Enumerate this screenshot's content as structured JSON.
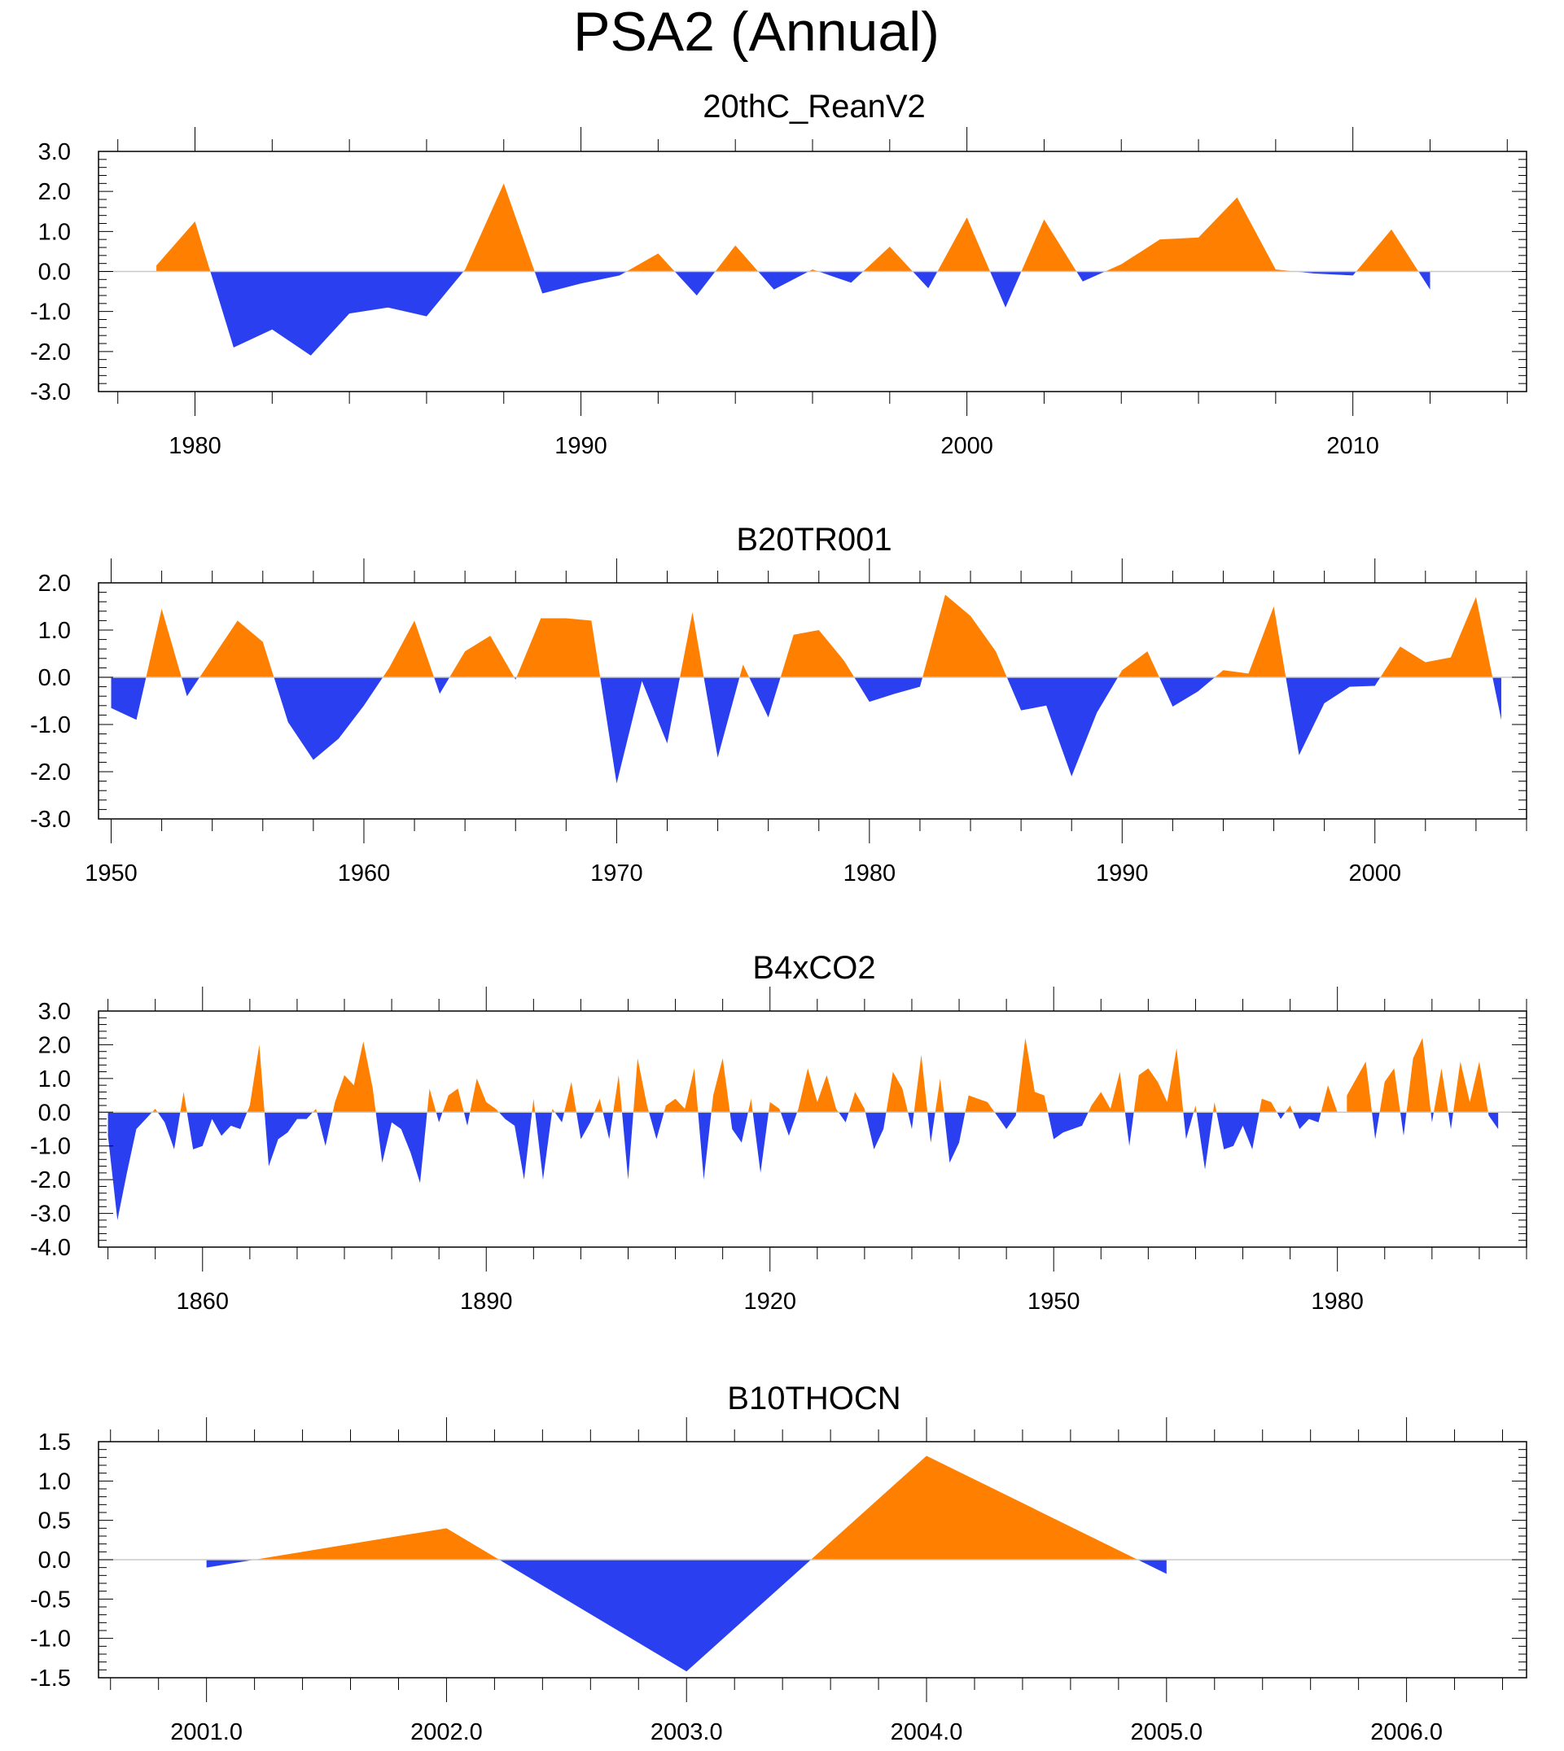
{
  "figure": {
    "title": "PSA2 (Annual)",
    "colors": {
      "positive": "#ff8000",
      "negative": "#2a3ff0",
      "zero_line": "#c8c8c8",
      "axis": "#000000"
    }
  },
  "chart_data": [
    {
      "type": "area",
      "title": "20thC_ReanV2",
      "xlim": [
        1977.5,
        2014.5
      ],
      "ylim": [
        -3.0,
        3.0
      ],
      "yticks": [
        -3.0,
        -2.0,
        -1.0,
        0.0,
        1.0,
        2.0,
        3.0
      ],
      "ytick_labels": [
        "-3.0",
        "-2.0",
        "-1.0",
        "0.0",
        "1.0",
        "2.0",
        "3.0"
      ],
      "yminor": 0.2,
      "xticks": [
        1980,
        1990,
        2000,
        2010
      ],
      "xtick_labels": [
        "1980",
        "1990",
        "2000",
        "2010"
      ],
      "xminor": 2,
      "x_start": 1979,
      "x_step": 1,
      "values": [
        0.15,
        1.25,
        -1.9,
        -1.45,
        -2.1,
        -1.05,
        -0.9,
        -1.12,
        0.05,
        2.2,
        -0.55,
        -0.3,
        -0.1,
        0.45,
        -0.6,
        0.65,
        -0.45,
        0.05,
        -0.28,
        0.62,
        -0.42,
        1.35,
        -0.9,
        1.3,
        -0.25,
        0.18,
        0.8,
        0.85,
        1.85,
        0.05,
        -0.05,
        -0.1,
        1.05,
        -0.45
      ]
    },
    {
      "type": "area",
      "title": "B20TR001",
      "xlim": [
        1949.5,
        2006.0
      ],
      "ylim": [
        -3.0,
        2.0
      ],
      "yticks": [
        -3.0,
        -2.0,
        -1.0,
        0.0,
        1.0,
        2.0
      ],
      "ytick_labels": [
        "-3.0",
        "-2.0",
        "-1.0",
        "0.0",
        "1.0",
        "2.0"
      ],
      "yminor": 0.2,
      "xticks": [
        1950,
        1960,
        1970,
        1980,
        1990,
        2000
      ],
      "xtick_labels": [
        "1950",
        "1960",
        "1970",
        "1980",
        "1990",
        "2000"
      ],
      "xminor": 2,
      "x_start": 1950,
      "x_step": 1,
      "values": [
        -0.65,
        -0.9,
        1.45,
        -0.4,
        0.4,
        1.2,
        0.75,
        -0.95,
        -1.75,
        -1.3,
        -0.6,
        0.2,
        1.2,
        -0.35,
        0.55,
        0.88,
        -0.05,
        1.25,
        1.25,
        1.2,
        -2.25,
        -0.08,
        -1.4,
        1.38,
        -1.7,
        0.27,
        -0.85,
        0.9,
        1.0,
        0.35,
        -0.52,
        -0.35,
        -0.2,
        1.75,
        1.3,
        0.55,
        -0.7,
        -0.6,
        -2.1,
        -0.75,
        0.15,
        0.55,
        -0.62,
        -0.3,
        0.15,
        0.08,
        1.5,
        -1.65,
        -0.55,
        -0.2,
        -0.18,
        0.65,
        0.32,
        0.42,
        1.7,
        -0.9
      ]
    },
    {
      "type": "area",
      "title": "B4xCO2",
      "xlim": [
        1849.0,
        2000.0
      ],
      "ylim": [
        -4.0,
        3.0
      ],
      "yticks": [
        -4.0,
        -3.0,
        -2.0,
        -1.0,
        0.0,
        1.0,
        2.0,
        3.0
      ],
      "ytick_labels": [
        "-4.0",
        "-3.0",
        "-2.0",
        "-1.0",
        "0.0",
        "1.0",
        "2.0",
        "3.0"
      ],
      "yminor": 0.2,
      "xticks": [
        1860,
        1890,
        1920,
        1950,
        1980
      ],
      "xtick_labels": [
        "1860",
        "1890",
        "1920",
        "1950",
        "1980"
      ],
      "xminor": 5,
      "x_start": 1850,
      "x_step": 1,
      "values": [
        -0.7,
        -3.2,
        -1.8,
        -0.5,
        -0.2,
        0.1,
        -0.3,
        -1.1,
        0.6,
        -1.1,
        -1.0,
        -0.2,
        -0.7,
        -0.4,
        -0.5,
        0.2,
        2.0,
        -1.6,
        -0.8,
        -0.6,
        -0.2,
        -0.2,
        0.1,
        -1.0,
        0.3,
        1.1,
        0.8,
        2.1,
        0.7,
        -1.5,
        -0.3,
        -0.5,
        -1.2,
        -2.1,
        0.7,
        -0.3,
        0.5,
        0.7,
        -0.4,
        1.0,
        0.3,
        0.1,
        -0.2,
        -0.4,
        -2.0,
        0.4,
        -2.0,
        0.1,
        -0.3,
        0.9,
        -0.8,
        -0.3,
        0.4,
        -0.8,
        1.1,
        -2.0,
        1.6,
        0.2,
        -0.8,
        0.2,
        0.4,
        0.1,
        1.3,
        -2.0,
        0.5,
        1.6,
        -0.5,
        -0.9,
        0.4,
        -1.8,
        0.3,
        0.1,
        -0.7,
        0.1,
        1.3,
        0.3,
        1.1,
        0.1,
        -0.3,
        0.6,
        0.1,
        -1.1,
        -0.5,
        1.2,
        0.7,
        -0.5,
        1.7,
        -0.9,
        1.0,
        -1.5,
        -0.9,
        0.5,
        0.4,
        0.3,
        -0.1,
        -0.5,
        -0.1,
        2.2,
        0.6,
        0.5,
        -0.8,
        -0.6,
        -0.5,
        -0.4,
        0.2,
        0.6,
        0.1,
        1.2,
        -1.0,
        1.1,
        1.3,
        0.9,
        0.3,
        1.9,
        -0.8,
        0.2,
        -1.7,
        0.3,
        -1.1,
        -1.0,
        -0.4,
        -1.1,
        0.4,
        0.3,
        -0.2,
        0.2,
        -0.5,
        -0.2,
        -0.3,
        0.8,
        0.0,
        0.5,
        1.0,
        1.5,
        -0.8,
        0.9,
        1.3,
        -0.7,
        1.6,
        2.2,
        -0.3,
        1.3,
        -0.5,
        1.5,
        0.3,
        1.5,
        -0.1,
        -0.5
      ]
    },
    {
      "type": "area",
      "title": "B10THOCN",
      "xlim": [
        2000.55,
        2006.5
      ],
      "ylim": [
        -1.5,
        1.5
      ],
      "yticks": [
        -1.5,
        -1.0,
        -0.5,
        0.0,
        0.5,
        1.0,
        1.5
      ],
      "ytick_labels": [
        "-1.5",
        "-1.0",
        "-0.5",
        "0.0",
        "0.5",
        "1.0",
        "1.5"
      ],
      "yminor": 0.1,
      "xticks": [
        2001.0,
        2002.0,
        2003.0,
        2004.0,
        2005.0,
        2006.0
      ],
      "xtick_labels": [
        "2001.0",
        "2002.0",
        "2003.0",
        "2004.0",
        "2005.0",
        "2006.0"
      ],
      "xminor": 0.2,
      "x_start": 2001,
      "x_step": 1,
      "values": [
        -0.1,
        0.4,
        -1.42,
        1.32,
        -0.18
      ]
    }
  ]
}
